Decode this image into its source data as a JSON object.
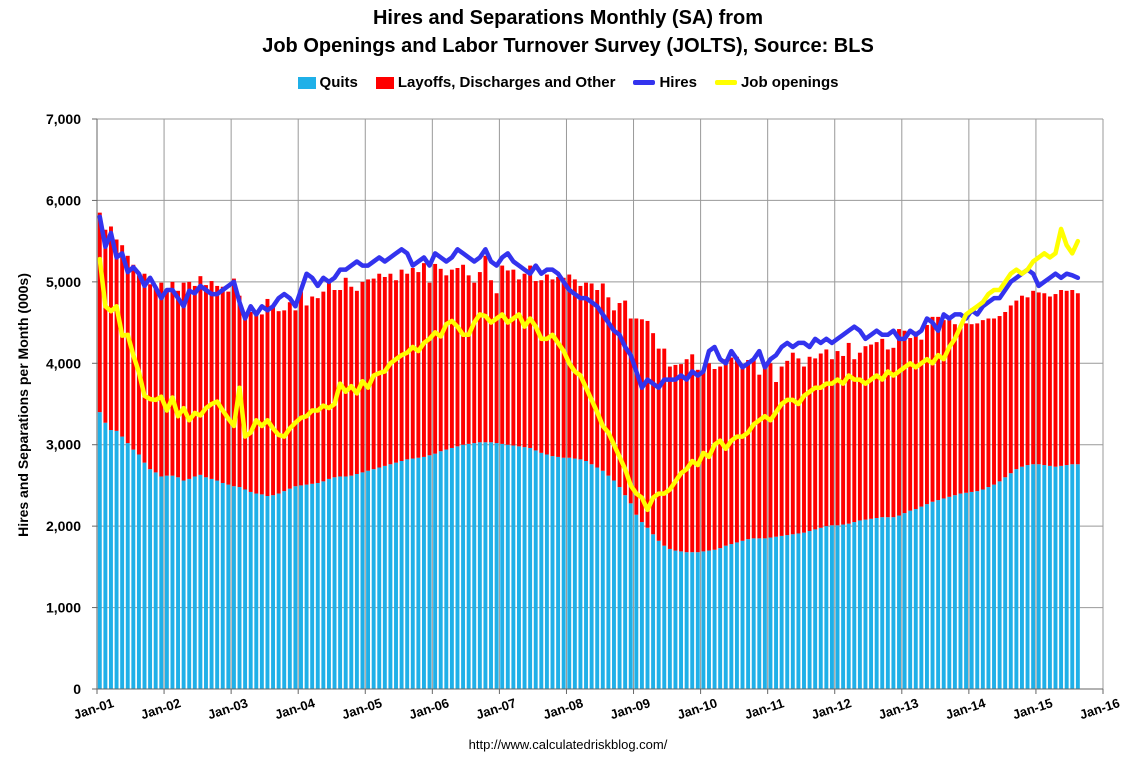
{
  "title_line1": "Hires and Separations Monthly (SA) from",
  "title_line2": "Job Openings and Labor Turnover Survey (JOLTS), Source: BLS",
  "source": "http://www.calculatedriskblog.com/",
  "legend": {
    "quits": "Quits",
    "layoffs": "Layoffs, Discharges and Other",
    "hires": "Hires",
    "openings": "Job openings"
  },
  "colors": {
    "quits": "#1fb0e8",
    "layoffs": "#ff0000",
    "hires": "#3333ee",
    "openings": "#ffff00",
    "grid": "#999999"
  },
  "chart_data": {
    "type": "bar",
    "stacked": true,
    "ylabel": "Hires and Separations per Month (000s)",
    "ylim": [
      0,
      7000
    ],
    "ytick_labels": [
      "0",
      "1,000",
      "2,000",
      "3,000",
      "4,000",
      "5,000",
      "6,000",
      "7,000"
    ],
    "xtick_labels": [
      "Jan-01",
      "Jan-02",
      "Jan-03",
      "Jan-04",
      "Jan-05",
      "Jan-06",
      "Jan-07",
      "Jan-08",
      "Jan-09",
      "Jan-10",
      "Jan-11",
      "Jan-12",
      "Jan-13",
      "Jan-14",
      "Jan-15",
      "Jan-16"
    ],
    "grid": true,
    "legend_position": "top",
    "start": "Jan-01",
    "months": 176,
    "series": [
      {
        "name": "Quits",
        "type": "bar",
        "values": [
          3400,
          3270,
          3180,
          3170,
          3100,
          3020,
          2940,
          2880,
          2780,
          2700,
          2660,
          2610,
          2620,
          2620,
          2600,
          2560,
          2580,
          2610,
          2630,
          2600,
          2580,
          2560,
          2530,
          2510,
          2490,
          2480,
          2450,
          2420,
          2400,
          2390,
          2370,
          2380,
          2400,
          2430,
          2460,
          2490,
          2500,
          2510,
          2520,
          2530,
          2550,
          2580,
          2600,
          2610,
          2610,
          2620,
          2640,
          2660,
          2680,
          2700,
          2720,
          2740,
          2760,
          2780,
          2800,
          2820,
          2830,
          2840,
          2850,
          2870,
          2890,
          2920,
          2940,
          2960,
          2980,
          3000,
          3010,
          3020,
          3030,
          3030,
          3030,
          3020,
          3010,
          3000,
          2990,
          2980,
          2970,
          2960,
          2930,
          2900,
          2880,
          2860,
          2850,
          2840,
          2840,
          2830,
          2820,
          2800,
          2760,
          2720,
          2680,
          2620,
          2560,
          2480,
          2380,
          2280,
          2140,
          2050,
          1980,
          1900,
          1820,
          1760,
          1720,
          1700,
          1690,
          1680,
          1680,
          1680,
          1690,
          1700,
          1710,
          1730,
          1760,
          1780,
          1800,
          1820,
          1840,
          1850,
          1850,
          1850,
          1860,
          1870,
          1880,
          1890,
          1900,
          1910,
          1920,
          1940,
          1960,
          1980,
          2000,
          2010,
          2010,
          2020,
          2030,
          2050,
          2070,
          2080,
          2090,
          2100,
          2110,
          2110,
          2110,
          2130,
          2160,
          2190,
          2210,
          2240,
          2270,
          2300,
          2320,
          2340,
          2360,
          2380,
          2400,
          2410,
          2420,
          2430,
          2450,
          2480,
          2510,
          2550,
          2600,
          2650,
          2700,
          2730,
          2750,
          2760,
          2760,
          2750,
          2740,
          2730,
          2740,
          2750,
          2760,
          2760
        ]
      },
      {
        "name": "Layoffs, Discharges and Other",
        "type": "bar",
        "values": [
          2450,
          2370,
          2500,
          2350,
          2350,
          2300,
          2270,
          2200,
          2320,
          2270,
          2280,
          2380,
          2260,
          2380,
          2290,
          2430,
          2420,
          2340,
          2440,
          2360,
          2430,
          2390,
          2410,
          2370,
          2550,
          2350,
          2160,
          2210,
          2240,
          2210,
          2420,
          2330,
          2240,
          2220,
          2290,
          2160,
          2380,
          2200,
          2300,
          2270,
          2330,
          2410,
          2300,
          2290,
          2440,
          2320,
          2250,
          2340,
          2350,
          2340,
          2380,
          2320,
          2340,
          2240,
          2350,
          2280,
          2340,
          2280,
          2380,
          2120,
          2330,
          2240,
          2140,
          2190,
          2190,
          2210,
          2070,
          1970,
          2090,
          2290,
          1990,
          1840,
          2190,
          2140,
          2160,
          2050,
          2130,
          2240,
          2080,
          2120,
          2210,
          2170,
          2210,
          2210,
          2250,
          2200,
          2130,
          2190,
          2220,
          2180,
          2300,
          2190,
          2090,
          2260,
          2390,
          2270,
          2410,
          2490,
          2540,
          2470,
          2360,
          2420,
          2240,
          2280,
          2300,
          2370,
          2430,
          2240,
          2220,
          2300,
          2220,
          2230,
          2290,
          2290,
          2280,
          2160,
          2200,
          2190,
          2010,
          2160,
          2140,
          1900,
          2080,
          2140,
          2230,
          2150,
          2040,
          2140,
          2100,
          2140,
          2170,
          2040,
          2140,
          2070,
          2220,
          2000,
          2060,
          2130,
          2140,
          2160,
          2190,
          2060,
          2080,
          2290,
          2240,
          2120,
          2180,
          2050,
          2200,
          2270,
          2250,
          2190,
          2190,
          2100,
          2070,
          2080,
          2060,
          2060,
          2080,
          2070,
          2040,
          2030,
          2030,
          2060,
          2070,
          2100,
          2060,
          2130,
          2110,
          2110,
          2080,
          2120,
          2160,
          2140,
          2140,
          2100
        ]
      },
      {
        "name": "Hires",
        "type": "line",
        "values": [
          5800,
          5430,
          5600,
          5300,
          5350,
          5120,
          5180,
          5100,
          4950,
          5050,
          4930,
          4800,
          4900,
          4900,
          4800,
          4700,
          4890,
          4860,
          4950,
          4900,
          4850,
          4850,
          4900,
          4950,
          5000,
          4750,
          4550,
          4700,
          4600,
          4700,
          4650,
          4700,
          4800,
          4850,
          4800,
          4700,
          4900,
          5100,
          5050,
          4950,
          5050,
          5000,
          5050,
          5150,
          5150,
          5200,
          5250,
          5200,
          5200,
          5250,
          5300,
          5250,
          5300,
          5350,
          5400,
          5350,
          5200,
          5250,
          5300,
          5200,
          5350,
          5300,
          5250,
          5300,
          5400,
          5350,
          5300,
          5250,
          5300,
          5400,
          5250,
          5200,
          5300,
          5350,
          5250,
          5200,
          5150,
          5100,
          5200,
          5100,
          5150,
          5150,
          5100,
          5000,
          4900,
          4850,
          4800,
          4800,
          4750,
          4700,
          4600,
          4500,
          4400,
          4350,
          4200,
          4100,
          3900,
          3700,
          3800,
          3750,
          3700,
          3800,
          3800,
          3800,
          3850,
          3800,
          3900,
          3850,
          3900,
          4150,
          4200,
          4050,
          4000,
          4150,
          4050,
          3950,
          4000,
          4050,
          4150,
          3950,
          4050,
          4100,
          4200,
          4250,
          4200,
          4250,
          4250,
          4200,
          4300,
          4250,
          4300,
          4250,
          4300,
          4350,
          4400,
          4450,
          4400,
          4300,
          4350,
          4400,
          4350,
          4350,
          4400,
          4300,
          4300,
          4400,
          4350,
          4400,
          4550,
          4500,
          4400,
          4600,
          4550,
          4600,
          4600,
          4550,
          4650,
          4600,
          4700,
          4750,
          4800,
          4800,
          4900,
          5000,
          5050,
          5100,
          5150,
          5100,
          4950,
          5000,
          5050,
          5100,
          5050,
          5100,
          5080,
          5050
        ]
      },
      {
        "name": "Job openings",
        "type": "line",
        "values": [
          5280,
          4700,
          4640,
          4700,
          4340,
          4350,
          4100,
          3890,
          3600,
          3560,
          3550,
          3590,
          3420,
          3580,
          3350,
          3450,
          3300,
          3390,
          3360,
          3450,
          3500,
          3530,
          3420,
          3320,
          3230,
          3700,
          3100,
          3150,
          3300,
          3230,
          3300,
          3200,
          3120,
          3100,
          3200,
          3270,
          3330,
          3350,
          3420,
          3420,
          3480,
          3450,
          3500,
          3750,
          3650,
          3720,
          3630,
          3780,
          3700,
          3850,
          3880,
          3900,
          4000,
          4050,
          4100,
          4130,
          4200,
          4150,
          4250,
          4300,
          4380,
          4330,
          4480,
          4520,
          4450,
          4350,
          4350,
          4500,
          4600,
          4580,
          4500,
          4550,
          4600,
          4500,
          4550,
          4600,
          4450,
          4550,
          4450,
          4300,
          4300,
          4350,
          4250,
          4150,
          4000,
          3900,
          3850,
          3700,
          3550,
          3400,
          3230,
          3150,
          3000,
          2850,
          2700,
          2500,
          2400,
          2350,
          2200,
          2350,
          2400,
          2400,
          2450,
          2550,
          2650,
          2700,
          2800,
          2750,
          2900,
          2850,
          3000,
          3050,
          2950,
          3050,
          3100,
          3100,
          3150,
          3250,
          3300,
          3350,
          3300,
          3400,
          3500,
          3550,
          3550,
          3500,
          3600,
          3650,
          3700,
          3700,
          3750,
          3750,
          3800,
          3750,
          3850,
          3800,
          3800,
          3750,
          3800,
          3850,
          3800,
          3900,
          3850,
          3900,
          3950,
          4000,
          3950,
          4000,
          4050,
          4000,
          4100,
          4050,
          4200,
          4300,
          4450,
          4600,
          4650,
          4700,
          4750,
          4850,
          4900,
          4900,
          5000,
          5100,
          5150,
          5100,
          5150,
          5250,
          5300,
          5350,
          5300,
          5350,
          5650,
          5450,
          5350,
          5500
        ]
      }
    ]
  }
}
